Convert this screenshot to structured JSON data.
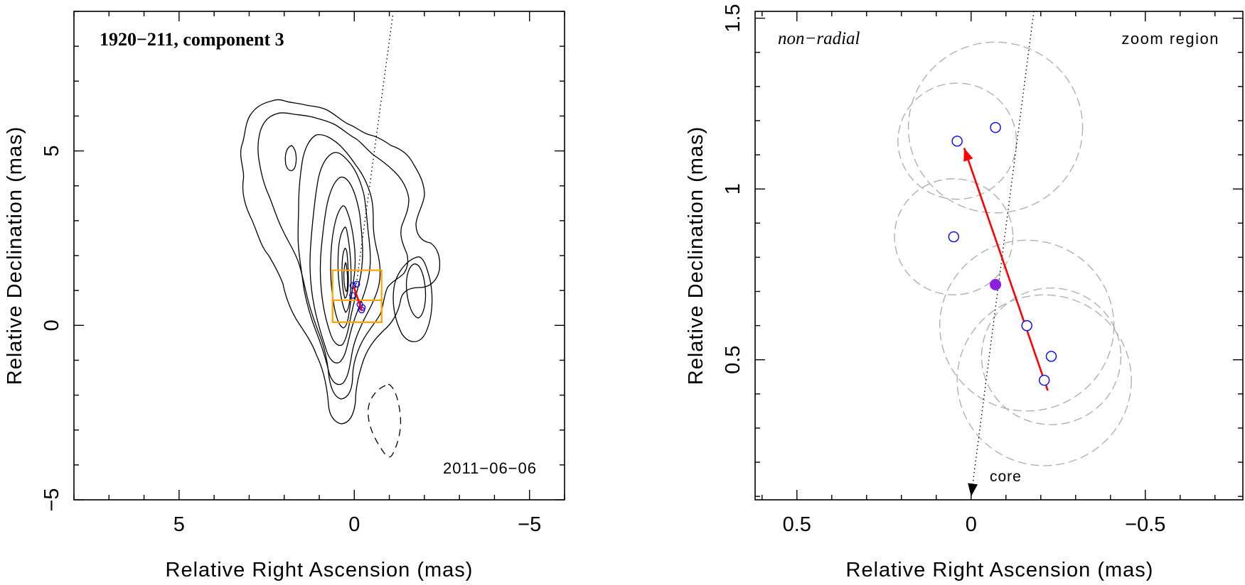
{
  "chart_data": [
    {
      "type": "contour",
      "title": "1920−211, component 3",
      "date_label": "2011−06−06",
      "xlabel": "Relative Right Ascension (mas)",
      "ylabel": "Relative Declination (mas)",
      "xlim": [
        8,
        -6
      ],
      "ylim": [
        -5,
        9
      ],
      "xticks": [
        5,
        0,
        -5
      ],
      "xtick_labels": [
        "5",
        "0",
        "−5"
      ],
      "yticks": [
        -5,
        0,
        5
      ],
      "ytick_labels": [
        "−5",
        "0",
        "5"
      ],
      "contour_levels": 10,
      "jet_axis_line": {
        "x": [
          0.0,
          -1.1
        ],
        "y": [
          0.75,
          8.9
        ]
      },
      "components": [
        {
          "x": 0.04,
          "y": 1.14
        },
        {
          "x": -0.07,
          "y": 1.18
        },
        {
          "x": 0.05,
          "y": 0.86
        },
        {
          "x": -0.16,
          "y": 0.6
        },
        {
          "x": -0.23,
          "y": 0.51
        },
        {
          "x": -0.21,
          "y": 0.44
        }
      ],
      "motion_vector": {
        "from": [
          -0.22,
          0.41
        ],
        "to": [
          0.02,
          1.12
        ]
      },
      "zoom_boxes": [
        {
          "x0": 0.62,
          "x1": -0.78,
          "y0": 0.09,
          "y1": 1.58
        },
        {
          "x0": 0.62,
          "x1": -0.78,
          "y0": 0.09,
          "y1": 0.72
        }
      ]
    },
    {
      "type": "scatter",
      "label": "non−radial",
      "corner_label": "zoom region",
      "core_label": "core",
      "xlabel": "Relative Right Ascension (mas)",
      "ylabel": "Relative Declination (mas)",
      "xlim": [
        0.62,
        -0.78
      ],
      "ylim": [
        0.09,
        1.52
      ],
      "xticks": [
        0.5,
        0,
        -0.5
      ],
      "xtick_labels": [
        "0.5",
        "0",
        "−0.5"
      ],
      "yticks": [
        0.5,
        1,
        1.5
      ],
      "ytick_labels": [
        "0.5",
        "1",
        "1.5"
      ],
      "components": [
        {
          "x": 0.04,
          "y": 1.14,
          "r": 0.17
        },
        {
          "x": -0.07,
          "y": 1.18,
          "r": 0.25
        },
        {
          "x": 0.05,
          "y": 0.86,
          "r": 0.17
        },
        {
          "x": -0.16,
          "y": 0.6,
          "r": 0.25
        },
        {
          "x": -0.23,
          "y": 0.51,
          "r": 0.2
        },
        {
          "x": -0.21,
          "y": 0.44,
          "r": 0.25
        }
      ],
      "mean_position": {
        "x": -0.07,
        "y": 0.72
      },
      "motion_vector": {
        "from": [
          -0.22,
          0.41
        ],
        "to": [
          0.02,
          1.12
        ]
      },
      "jet_axis_line": {
        "x": [
          0.0,
          -0.18
        ],
        "y": [
          0.1,
          1.52
        ]
      },
      "colors": {
        "vector": "#ff0000",
        "component": "#0000ff",
        "mean": "#8b1fe0",
        "circle": "#b0b0b0",
        "box": "#ffa500"
      }
    }
  ]
}
